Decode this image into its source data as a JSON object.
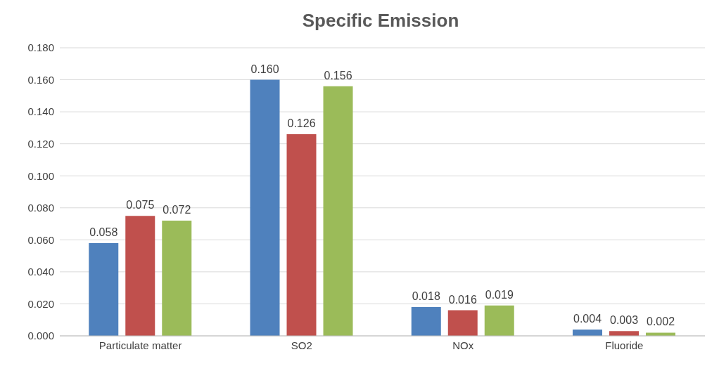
{
  "chart_data": {
    "type": "bar",
    "title": "Specific Emission",
    "categories": [
      "Particulate matter",
      "SO2",
      "NOx",
      "Fluoride"
    ],
    "series": [
      {
        "color": "#4f81bd",
        "values": [
          0.058,
          0.16,
          0.018,
          0.004
        ],
        "value_labels": [
          "0.058",
          "0.160",
          "0.018",
          "0.004"
        ]
      },
      {
        "color": "#c0504d",
        "values": [
          0.075,
          0.126,
          0.016,
          0.003
        ],
        "value_labels": [
          "0.075",
          "0.126",
          "0.016",
          "0.003"
        ]
      },
      {
        "color": "#9bbb59",
        "values": [
          0.072,
          0.156,
          0.019,
          0.002
        ],
        "value_labels": [
          "0.072",
          "0.156",
          "0.019",
          "0.002"
        ]
      }
    ],
    "ylim": [
      0,
      0.18
    ],
    "yticks": [
      {
        "value": 0,
        "label": "0.000"
      },
      {
        "value": 0.02,
        "label": "0.020"
      },
      {
        "value": 0.04,
        "label": "0.040"
      },
      {
        "value": 0.06,
        "label": "0.060"
      },
      {
        "value": 0.08,
        "label": "0.080"
      },
      {
        "value": 0.1,
        "label": "0.100"
      },
      {
        "value": 0.12,
        "label": "0.120"
      },
      {
        "value": 0.14,
        "label": "0.140"
      },
      {
        "value": 0.16,
        "label": "0.160"
      },
      {
        "value": 0.18,
        "label": "0.180"
      }
    ],
    "grid": "y",
    "legend": false
  }
}
